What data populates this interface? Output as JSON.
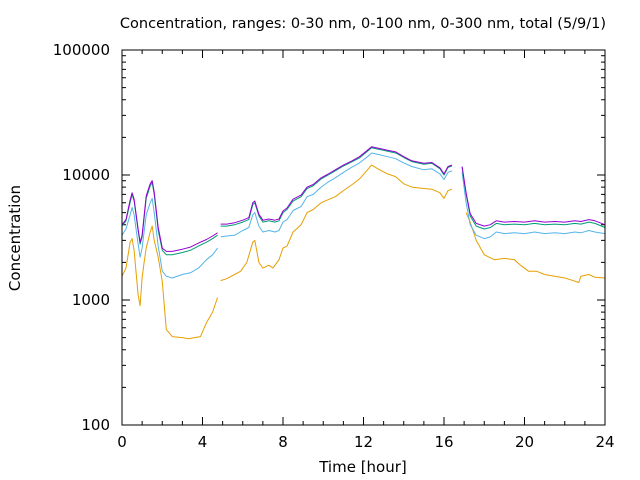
{
  "chart_data": {
    "type": "line",
    "title": "Concentration, ranges: 0-30 nm, 0-100 nm, 0-300 nm, total (5/9/1)",
    "xlabel": "Time [hour]",
    "ylabel": "Concentration",
    "xlim": [
      0,
      24
    ],
    "ylim": [
      100,
      100000
    ],
    "yscale": "log",
    "grid": false,
    "legend": "none",
    "x_ticks": [
      "0",
      "4",
      "8",
      "12",
      "16",
      "20",
      "24"
    ],
    "y_ticks": [
      "100",
      "1000",
      "10000",
      "100000"
    ],
    "series": [
      {
        "color": "#e69f00",
        "points": [
          [
            0,
            1550
          ],
          [
            0.2,
            1800
          ],
          [
            0.4,
            2900
          ],
          [
            0.5,
            3100
          ],
          [
            0.6,
            2500
          ],
          [
            0.8,
            1100
          ],
          [
            0.9,
            900
          ],
          [
            1.0,
            1500
          ],
          [
            1.1,
            2000
          ],
          [
            1.2,
            2600
          ],
          [
            1.4,
            3500
          ],
          [
            1.5,
            3900
          ],
          [
            1.6,
            3000
          ],
          [
            1.8,
            2200
          ],
          [
            2.0,
            1400
          ],
          [
            2.2,
            580
          ],
          [
            2.5,
            510
          ],
          [
            3.0,
            500
          ],
          [
            3.3,
            490
          ],
          [
            3.6,
            500
          ],
          [
            3.9,
            510
          ],
          [
            4.2,
            660
          ],
          [
            4.5,
            800
          ],
          [
            4.75,
            1050
          ],
          null,
          [
            4.9,
            1430
          ],
          [
            5.2,
            1480
          ],
          [
            5.6,
            1600
          ],
          [
            5.9,
            1700
          ],
          [
            6.2,
            2000
          ],
          [
            6.5,
            2900
          ],
          [
            6.6,
            3000
          ],
          [
            6.8,
            2000
          ],
          [
            7.0,
            1800
          ],
          [
            7.3,
            1900
          ],
          [
            7.5,
            1800
          ],
          [
            7.8,
            2100
          ],
          [
            8.0,
            2600
          ],
          [
            8.2,
            2700
          ],
          [
            8.5,
            3500
          ],
          [
            8.9,
            4000
          ],
          [
            9.2,
            5000
          ],
          [
            9.5,
            5300
          ],
          [
            9.9,
            6000
          ],
          [
            10.2,
            6300
          ],
          [
            10.6,
            6700
          ],
          [
            11.0,
            7500
          ],
          [
            11.4,
            8300
          ],
          [
            11.8,
            9300
          ],
          [
            12.2,
            11000
          ],
          [
            12.4,
            12000
          ],
          [
            12.8,
            11000
          ],
          [
            13.2,
            10200
          ],
          [
            13.6,
            9700
          ],
          [
            14.0,
            8500
          ],
          [
            14.4,
            8000
          ],
          [
            15.0,
            7800
          ],
          [
            15.4,
            7700
          ],
          [
            15.8,
            7200
          ],
          [
            16.0,
            6500
          ],
          [
            16.2,
            7500
          ],
          [
            16.4,
            7700
          ],
          null,
          [
            17.1,
            5000
          ],
          [
            17.3,
            4200
          ],
          [
            17.6,
            3000
          ],
          [
            18.0,
            2300
          ],
          [
            18.5,
            2100
          ],
          [
            19.0,
            2150
          ],
          [
            19.5,
            2100
          ],
          [
            19.8,
            1900
          ],
          [
            20.2,
            1700
          ],
          [
            20.6,
            1700
          ],
          [
            21.0,
            1600
          ],
          [
            21.5,
            1550
          ],
          [
            22.0,
            1500
          ],
          [
            22.3,
            1450
          ],
          [
            22.7,
            1380
          ],
          [
            22.8,
            1550
          ],
          [
            23.2,
            1600
          ],
          [
            23.5,
            1520
          ],
          [
            24.0,
            1500
          ]
        ]
      },
      {
        "color": "#56b4e9",
        "points": [
          [
            0,
            3300
          ],
          [
            0.2,
            3700
          ],
          [
            0.4,
            4800
          ],
          [
            0.5,
            5500
          ],
          [
            0.6,
            4800
          ],
          [
            0.8,
            2800
          ],
          [
            0.9,
            2200
          ],
          [
            1.0,
            2600
          ],
          [
            1.2,
            4800
          ],
          [
            1.4,
            6000
          ],
          [
            1.5,
            6500
          ],
          [
            1.6,
            5000
          ],
          [
            1.8,
            2700
          ],
          [
            2.0,
            1700
          ],
          [
            2.2,
            1550
          ],
          [
            2.5,
            1500
          ],
          [
            3.0,
            1600
          ],
          [
            3.4,
            1650
          ],
          [
            3.8,
            1800
          ],
          [
            4.2,
            2100
          ],
          [
            4.5,
            2300
          ],
          [
            4.75,
            2600
          ],
          null,
          [
            4.9,
            3200
          ],
          [
            5.2,
            3250
          ],
          [
            5.6,
            3300
          ],
          [
            6.0,
            3600
          ],
          [
            6.3,
            3800
          ],
          [
            6.5,
            4800
          ],
          [
            6.6,
            5000
          ],
          [
            6.8,
            3900
          ],
          [
            7.0,
            3500
          ],
          [
            7.3,
            3600
          ],
          [
            7.6,
            3500
          ],
          [
            7.8,
            3600
          ],
          [
            8.0,
            4200
          ],
          [
            8.2,
            4400
          ],
          [
            8.5,
            5200
          ],
          [
            8.9,
            5600
          ],
          [
            9.2,
            6700
          ],
          [
            9.5,
            7000
          ],
          [
            9.9,
            8000
          ],
          [
            10.2,
            8700
          ],
          [
            10.6,
            9500
          ],
          [
            11.0,
            10500
          ],
          [
            11.4,
            11500
          ],
          [
            11.8,
            12500
          ],
          [
            12.2,
            14000
          ],
          [
            12.4,
            15000
          ],
          [
            12.8,
            14500
          ],
          [
            13.2,
            14000
          ],
          [
            13.6,
            13500
          ],
          [
            14.0,
            12500
          ],
          [
            14.4,
            11700
          ],
          [
            15.0,
            11000
          ],
          [
            15.4,
            11200
          ],
          [
            15.8,
            10200
          ],
          [
            16.0,
            9200
          ],
          [
            16.2,
            10500
          ],
          [
            16.4,
            10800
          ],
          null,
          [
            16.9,
            10500
          ],
          [
            17.1,
            6000
          ],
          [
            17.3,
            4000
          ],
          [
            17.6,
            3300
          ],
          [
            18.0,
            3100
          ],
          [
            18.3,
            3200
          ],
          [
            18.6,
            3500
          ],
          [
            19.0,
            3400
          ],
          [
            19.5,
            3450
          ],
          [
            20.0,
            3400
          ],
          [
            20.5,
            3500
          ],
          [
            21.0,
            3400
          ],
          [
            21.5,
            3450
          ],
          [
            22.0,
            3400
          ],
          [
            22.5,
            3500
          ],
          [
            22.8,
            3450
          ],
          [
            23.2,
            3600
          ],
          [
            23.5,
            3500
          ],
          [
            24.0,
            3400
          ]
        ]
      },
      {
        "color": "#009e73",
        "points": [
          [
            0,
            3900
          ],
          [
            0.2,
            4300
          ],
          [
            0.4,
            6000
          ],
          [
            0.5,
            7000
          ],
          [
            0.6,
            6200
          ],
          [
            0.8,
            3600
          ],
          [
            0.9,
            2800
          ],
          [
            1.0,
            3200
          ],
          [
            1.2,
            6500
          ],
          [
            1.4,
            8200
          ],
          [
            1.5,
            8700
          ],
          [
            1.6,
            7000
          ],
          [
            1.8,
            3600
          ],
          [
            2.0,
            2500
          ],
          [
            2.2,
            2300
          ],
          [
            2.5,
            2300
          ],
          [
            3.0,
            2400
          ],
          [
            3.4,
            2500
          ],
          [
            3.8,
            2700
          ],
          [
            4.2,
            2900
          ],
          [
            4.5,
            3100
          ],
          [
            4.75,
            3300
          ],
          null,
          [
            4.9,
            3900
          ],
          [
            5.2,
            3900
          ],
          [
            5.6,
            4000
          ],
          [
            6.0,
            4200
          ],
          [
            6.3,
            4400
          ],
          [
            6.5,
            5800
          ],
          [
            6.6,
            6000
          ],
          [
            6.8,
            4700
          ],
          [
            7.0,
            4200
          ],
          [
            7.3,
            4300
          ],
          [
            7.6,
            4200
          ],
          [
            7.8,
            4300
          ],
          [
            8.0,
            5000
          ],
          [
            8.2,
            5300
          ],
          [
            8.5,
            6200
          ],
          [
            8.9,
            6700
          ],
          [
            9.2,
            7800
          ],
          [
            9.5,
            8200
          ],
          [
            9.9,
            9300
          ],
          [
            10.2,
            9900
          ],
          [
            10.6,
            10800
          ],
          [
            11.0,
            11800
          ],
          [
            11.4,
            12700
          ],
          [
            11.8,
            13700
          ],
          [
            12.2,
            15500
          ],
          [
            12.4,
            16500
          ],
          [
            12.8,
            16000
          ],
          [
            13.2,
            15500
          ],
          [
            13.6,
            15000
          ],
          [
            14.0,
            13800
          ],
          [
            14.4,
            12800
          ],
          [
            15.0,
            12200
          ],
          [
            15.4,
            12400
          ],
          [
            15.8,
            11200
          ],
          [
            16.0,
            10000
          ],
          [
            16.2,
            11500
          ],
          [
            16.4,
            11800
          ],
          null,
          [
            16.9,
            11500
          ],
          [
            17.1,
            7000
          ],
          [
            17.3,
            4700
          ],
          [
            17.6,
            3900
          ],
          [
            18.0,
            3700
          ],
          [
            18.3,
            3800
          ],
          [
            18.6,
            4100
          ],
          [
            19.0,
            4000
          ],
          [
            19.5,
            4050
          ],
          [
            20.0,
            4000
          ],
          [
            20.5,
            4100
          ],
          [
            21.0,
            4000
          ],
          [
            21.5,
            4050
          ],
          [
            22.0,
            4000
          ],
          [
            22.5,
            4100
          ],
          [
            22.8,
            4050
          ],
          [
            23.2,
            4200
          ],
          [
            23.5,
            4100
          ],
          [
            24.0,
            3800
          ]
        ]
      },
      {
        "color": "#9400d3",
        "points": [
          [
            0,
            4000
          ],
          [
            0.2,
            4400
          ],
          [
            0.4,
            6300
          ],
          [
            0.5,
            7200
          ],
          [
            0.6,
            6400
          ],
          [
            0.8,
            3700
          ],
          [
            0.9,
            2900
          ],
          [
            1.0,
            3300
          ],
          [
            1.2,
            6800
          ],
          [
            1.4,
            8500
          ],
          [
            1.5,
            9000
          ],
          [
            1.6,
            7300
          ],
          [
            1.8,
            3800
          ],
          [
            2.0,
            2600
          ],
          [
            2.2,
            2450
          ],
          [
            2.5,
            2450
          ],
          [
            3.0,
            2550
          ],
          [
            3.4,
            2650
          ],
          [
            3.8,
            2850
          ],
          [
            4.2,
            3050
          ],
          [
            4.5,
            3250
          ],
          [
            4.75,
            3450
          ],
          null,
          [
            4.9,
            4050
          ],
          [
            5.2,
            4050
          ],
          [
            5.6,
            4150
          ],
          [
            6.0,
            4350
          ],
          [
            6.3,
            4550
          ],
          [
            6.5,
            6000
          ],
          [
            6.6,
            6200
          ],
          [
            6.8,
            4850
          ],
          [
            7.0,
            4350
          ],
          [
            7.3,
            4450
          ],
          [
            7.6,
            4350
          ],
          [
            7.8,
            4450
          ],
          [
            8.0,
            5150
          ],
          [
            8.2,
            5450
          ],
          [
            8.5,
            6400
          ],
          [
            8.9,
            6900
          ],
          [
            9.2,
            8000
          ],
          [
            9.5,
            8400
          ],
          [
            9.9,
            9500
          ],
          [
            10.2,
            10100
          ],
          [
            10.6,
            11000
          ],
          [
            11.0,
            12000
          ],
          [
            11.4,
            12900
          ],
          [
            11.8,
            14000
          ],
          [
            12.2,
            15800
          ],
          [
            12.4,
            16800
          ],
          [
            12.8,
            16300
          ],
          [
            13.2,
            15800
          ],
          [
            13.6,
            15300
          ],
          [
            14.0,
            14000
          ],
          [
            14.4,
            13000
          ],
          [
            15.0,
            12400
          ],
          [
            15.4,
            12600
          ],
          [
            15.8,
            11400
          ],
          [
            16.0,
            10200
          ],
          [
            16.2,
            11700
          ],
          [
            16.4,
            12000
          ],
          null,
          [
            16.9,
            11700
          ],
          [
            17.1,
            7200
          ],
          [
            17.3,
            4900
          ],
          [
            17.6,
            4100
          ],
          [
            18.0,
            3900
          ],
          [
            18.3,
            4000
          ],
          [
            18.6,
            4300
          ],
          [
            19.0,
            4200
          ],
          [
            19.5,
            4250
          ],
          [
            20.0,
            4200
          ],
          [
            20.5,
            4300
          ],
          [
            21.0,
            4200
          ],
          [
            21.5,
            4250
          ],
          [
            22.0,
            4200
          ],
          [
            22.5,
            4300
          ],
          [
            22.8,
            4250
          ],
          [
            23.2,
            4400
          ],
          [
            23.5,
            4300
          ],
          [
            24.0,
            4000
          ]
        ]
      }
    ]
  }
}
